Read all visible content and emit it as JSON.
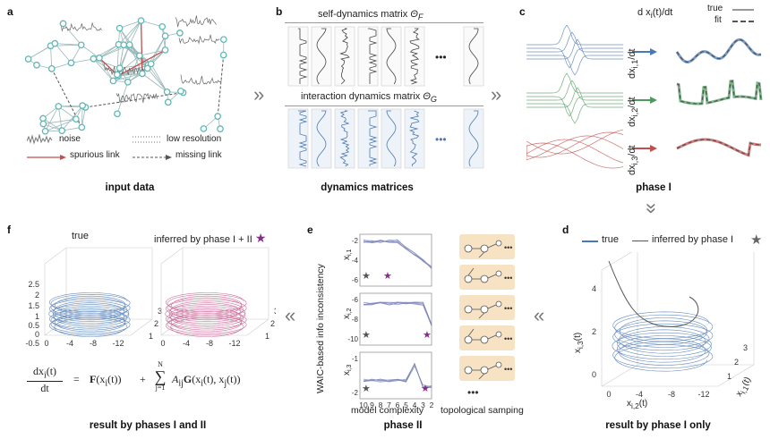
{
  "panels": {
    "a": {
      "label": "a",
      "caption": "input data",
      "legend": {
        "noise": "noise",
        "low_res": "low resolution",
        "spurious": "spurious link",
        "missing": "missing link"
      }
    },
    "b": {
      "label": "b",
      "caption": "dynamics matrices",
      "self_title": "self-dynamics matrix",
      "self_symbol": "Θ",
      "self_sub": "F",
      "inter_title": "interaction dynamics matrix",
      "inter_symbol": "Θ",
      "inter_sub": "G",
      "ellipsis": "•••"
    },
    "c": {
      "label": "c",
      "caption": "phase I",
      "deriv_header": "d x",
      "deriv_header_i": "i",
      "deriv_header_tail": "(t)/dt",
      "legend_true": "true",
      "legend_fit": "fit",
      "row_labels": [
        "dx",
        "dx",
        "dx"
      ],
      "row_subs": [
        "i,1",
        "i,2",
        "i,3"
      ],
      "row_tail": "/dt"
    },
    "d": {
      "label": "d",
      "caption": "result by phase I only",
      "legend_true": "true",
      "legend_inferred": "inferred by phase I",
      "zlabel": "x",
      "zlabel_sub": "i,3",
      "zlabel_tail": "(t)",
      "xlabel": "x",
      "xlabel_sub": "i,2",
      "xlabel_tail": "(t)",
      "ylabel": "x",
      "ylabel_sub": "i,1",
      "ylabel_tail": "(t)",
      "zticks": [
        "4",
        "2",
        "0"
      ],
      "xticks": [
        "0",
        "-4",
        "-8",
        "-12"
      ],
      "yticks": [
        "3",
        "2",
        "1"
      ]
    },
    "e": {
      "label": "e",
      "caption": "phase II",
      "ylabel": "WAIC-based info inconsistency",
      "xlabel": "model complexity",
      "topo_caption": "topological samping",
      "sub_labels": [
        "x",
        "x",
        "x"
      ],
      "sub_subs": [
        "i,1",
        "i,2",
        "i,3"
      ],
      "yticks_1": [
        "-2",
        "-4",
        "-6"
      ],
      "yticks_2": [
        "-6",
        "-8",
        "-10"
      ],
      "yticks_3": [
        "-1",
        "-2"
      ],
      "xticks": [
        "10",
        "9",
        "8",
        "7",
        "6",
        "5",
        "4",
        "3",
        "2"
      ],
      "ellipsis": "•••"
    },
    "f": {
      "label": "f",
      "caption": "result by phases I and II",
      "title_true": "true",
      "title_inferred": "inferred by phase I + II",
      "zticks": [
        "2.5",
        "2",
        "1.5",
        "1",
        "0.5",
        "0",
        "-0.5"
      ],
      "xticks": [
        "0",
        "-4",
        "-8",
        "-12"
      ],
      "yticks": [
        "3",
        "2",
        "1"
      ],
      "equation": {
        "lhs_num": "dx",
        "lhs_num_sub": "i",
        "lhs_num_tail": "(t)",
        "lhs_den": "dt",
        "eq": "=",
        "F": "F",
        "F_arg": "(x",
        "F_arg_sub": "i",
        "F_arg_tail": "(t))",
        "plus": "+",
        "sum_top": "N",
        "sum_sym": "∑",
        "sum_bot": "j=1",
        "A": "A",
        "A_sub": "ij",
        "G": "G",
        "G_arg": "(x",
        "G_arg_sub": "i",
        "G_arg_mid": "(t), x",
        "G_arg_sub2": "j",
        "G_arg_tail": "(t))"
      }
    }
  },
  "colors": {
    "blue": "#4a78b4",
    "green": "#4c9a5e",
    "red": "#c0504d",
    "pink": "#c65b8d",
    "teal": "#5fb8b4",
    "purple": "#8b2a8e",
    "gray": "#666666",
    "topo_bg": "#f7e3c4"
  }
}
